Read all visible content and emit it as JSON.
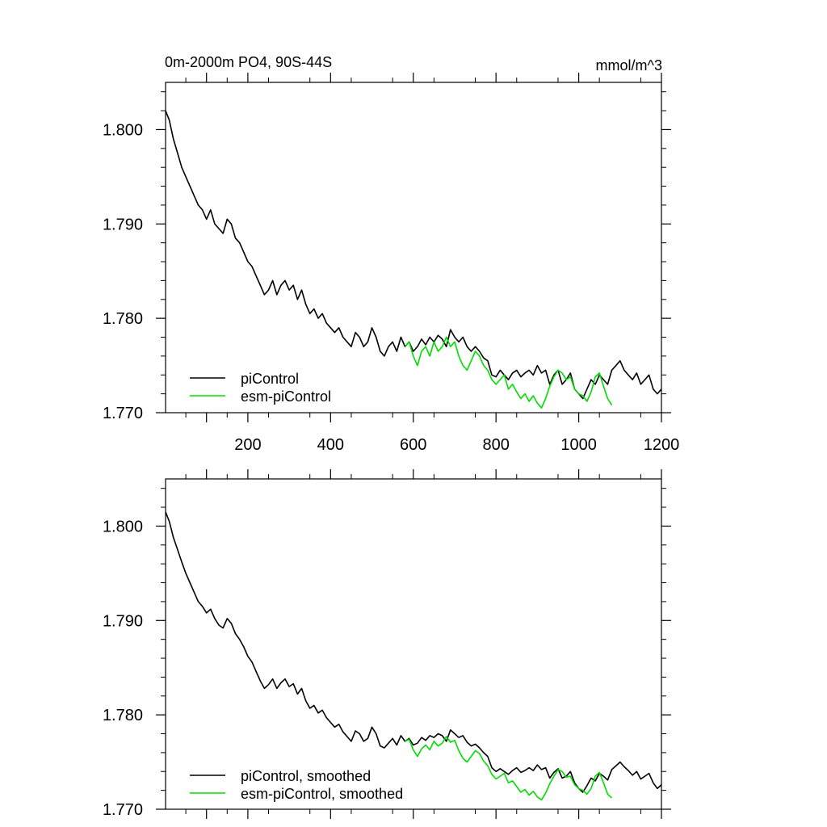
{
  "chart_data": [
    {
      "type": "line",
      "title": "0m-2000m PO4, 90S-44S",
      "units": "mmol/m^3",
      "x_range": [
        1,
        1200
      ],
      "ylim": [
        1.77,
        1.805
      ],
      "x_ticks": [
        200,
        400,
        600,
        800,
        1000,
        1200
      ],
      "y_ticks": [
        "1.770",
        "1.780",
        "1.790",
        "1.800"
      ],
      "grid": false,
      "legend_position": "bottom-left",
      "series": [
        {
          "name": "piControl",
          "color": "#000000",
          "x": [
            1,
            10,
            20,
            30,
            40,
            50,
            60,
            70,
            80,
            90,
            100,
            110,
            120,
            130,
            140,
            150,
            160,
            170,
            180,
            190,
            200,
            210,
            220,
            230,
            240,
            250,
            260,
            270,
            280,
            290,
            300,
            310,
            320,
            330,
            340,
            350,
            360,
            370,
            380,
            390,
            400,
            410,
            420,
            430,
            440,
            450,
            460,
            470,
            480,
            490,
            500,
            510,
            520,
            530,
            540,
            550,
            560,
            570,
            580,
            590,
            600,
            610,
            620,
            630,
            640,
            650,
            660,
            670,
            680,
            690,
            700,
            710,
            720,
            730,
            740,
            750,
            760,
            770,
            780,
            790,
            800,
            810,
            820,
            830,
            840,
            850,
            860,
            870,
            880,
            890,
            900,
            910,
            920,
            930,
            940,
            950,
            960,
            970,
            980,
            990,
            1000,
            1010,
            1020,
            1030,
            1040,
            1050,
            1060,
            1070,
            1080,
            1090,
            1100,
            1110,
            1120,
            1130,
            1140,
            1150,
            1160,
            1170,
            1180,
            1190,
            1200
          ],
          "y": [
            1.802,
            1.801,
            1.799,
            1.7975,
            1.796,
            1.795,
            1.794,
            1.793,
            1.792,
            1.7915,
            1.7905,
            1.7915,
            1.79,
            1.7895,
            1.789,
            1.7905,
            1.79,
            1.7885,
            1.788,
            1.787,
            1.786,
            1.7855,
            1.7845,
            1.7835,
            1.7825,
            1.783,
            1.784,
            1.7825,
            1.7835,
            1.784,
            1.783,
            1.7835,
            1.782,
            1.783,
            1.7815,
            1.7805,
            1.781,
            1.78,
            1.7805,
            1.7795,
            1.779,
            1.7785,
            1.779,
            1.778,
            1.7775,
            1.777,
            1.7785,
            1.778,
            1.777,
            1.7775,
            1.779,
            1.778,
            1.7765,
            1.776,
            1.777,
            1.7775,
            1.7765,
            1.778,
            1.777,
            1.7775,
            1.7765,
            1.777,
            1.7778,
            1.7772,
            1.778,
            1.7775,
            1.7782,
            1.7778,
            1.777,
            1.7788,
            1.778,
            1.7775,
            1.778,
            1.777,
            1.7765,
            1.777,
            1.7765,
            1.7758,
            1.7755,
            1.774,
            1.7738,
            1.7745,
            1.774,
            1.7735,
            1.7742,
            1.7745,
            1.7738,
            1.7742,
            1.7745,
            1.774,
            1.775,
            1.7742,
            1.7745,
            1.773,
            1.774,
            1.7745,
            1.773,
            1.7735,
            1.7742,
            1.7725,
            1.772,
            1.7715,
            1.7725,
            1.7735,
            1.773,
            1.774,
            1.7735,
            1.773,
            1.7745,
            1.775,
            1.7755,
            1.7745,
            1.774,
            1.7735,
            1.7742,
            1.773,
            1.7735,
            1.774,
            1.7725,
            1.772,
            1.7725
          ]
        },
        {
          "name": "esm-piControl",
          "color": "#00dd00",
          "x": [
            580,
            590,
            600,
            610,
            620,
            630,
            640,
            650,
            660,
            670,
            680,
            690,
            700,
            710,
            720,
            730,
            740,
            750,
            760,
            770,
            780,
            790,
            800,
            810,
            820,
            830,
            840,
            850,
            860,
            870,
            880,
            890,
            900,
            910,
            920,
            930,
            940,
            950,
            960,
            970,
            980,
            990,
            1000,
            1010,
            1020,
            1030,
            1040,
            1050,
            1060,
            1070,
            1080
          ],
          "y": [
            1.777,
            1.7775,
            1.776,
            1.775,
            1.7765,
            1.777,
            1.776,
            1.7775,
            1.7765,
            1.777,
            1.778,
            1.777,
            1.7775,
            1.776,
            1.775,
            1.7745,
            1.7755,
            1.7765,
            1.776,
            1.775,
            1.7745,
            1.7735,
            1.773,
            1.7735,
            1.774,
            1.7725,
            1.773,
            1.7722,
            1.7715,
            1.772,
            1.7712,
            1.7718,
            1.771,
            1.7705,
            1.7715,
            1.7728,
            1.7738,
            1.7745,
            1.7742,
            1.7735,
            1.7738,
            1.7725,
            1.772,
            1.7718,
            1.7712,
            1.7722,
            1.7738,
            1.7742,
            1.7728,
            1.7715,
            1.7708
          ]
        }
      ]
    },
    {
      "type": "line",
      "x_range": [
        1,
        1200
      ],
      "ylim": [
        1.77,
        1.805
      ],
      "x_ticks": [
        200,
        400,
        600,
        800,
        1000,
        1200
      ],
      "y_ticks": [
        "1.770",
        "1.780",
        "1.790",
        "1.800"
      ],
      "grid": false,
      "legend_position": "bottom-left",
      "series": [
        {
          "name": "piControl, smoothed",
          "color": "#000000",
          "x": [
            1,
            10,
            20,
            30,
            40,
            50,
            60,
            70,
            80,
            90,
            100,
            110,
            120,
            130,
            140,
            150,
            160,
            170,
            180,
            190,
            200,
            210,
            220,
            230,
            240,
            250,
            260,
            270,
            280,
            290,
            300,
            310,
            320,
            330,
            340,
            350,
            360,
            370,
            380,
            390,
            400,
            410,
            420,
            430,
            440,
            450,
            460,
            470,
            480,
            490,
            500,
            510,
            520,
            530,
            540,
            550,
            560,
            570,
            580,
            590,
            600,
            610,
            620,
            630,
            640,
            650,
            660,
            670,
            680,
            690,
            700,
            710,
            720,
            730,
            740,
            750,
            760,
            770,
            780,
            790,
            800,
            810,
            820,
            830,
            840,
            850,
            860,
            870,
            880,
            890,
            900,
            910,
            920,
            930,
            940,
            950,
            960,
            970,
            980,
            990,
            1000,
            1010,
            1020,
            1030,
            1040,
            1050,
            1060,
            1070,
            1080,
            1090,
            1100,
            1110,
            1120,
            1130,
            1140,
            1150,
            1160,
            1170,
            1180,
            1190,
            1200
          ],
          "y": [
            1.8015,
            1.8005,
            1.7988,
            1.7975,
            1.7962,
            1.795,
            1.794,
            1.793,
            1.792,
            1.7915,
            1.7908,
            1.7912,
            1.7902,
            1.7895,
            1.7892,
            1.7902,
            1.7897,
            1.7886,
            1.788,
            1.7872,
            1.7862,
            1.7856,
            1.7846,
            1.7836,
            1.7828,
            1.7832,
            1.7838,
            1.7828,
            1.7834,
            1.7838,
            1.783,
            1.7833,
            1.7822,
            1.7828,
            1.7815,
            1.7807,
            1.781,
            1.7802,
            1.7805,
            1.7797,
            1.7792,
            1.7787,
            1.779,
            1.7782,
            1.7777,
            1.7772,
            1.7783,
            1.778,
            1.7772,
            1.7775,
            1.7787,
            1.778,
            1.7767,
            1.7765,
            1.777,
            1.7775,
            1.7768,
            1.7778,
            1.7772,
            1.7775,
            1.7768,
            1.777,
            1.7776,
            1.7773,
            1.7778,
            1.7776,
            1.778,
            1.7778,
            1.7772,
            1.7784,
            1.778,
            1.7776,
            1.7778,
            1.7771,
            1.7767,
            1.7769,
            1.7765,
            1.776,
            1.7756,
            1.7744,
            1.774,
            1.7743,
            1.774,
            1.7737,
            1.7741,
            1.7744,
            1.7739,
            1.7741,
            1.7744,
            1.7741,
            1.7747,
            1.7742,
            1.7744,
            1.7733,
            1.7739,
            1.7743,
            1.7733,
            1.7735,
            1.774,
            1.7728,
            1.7722,
            1.7718,
            1.7725,
            1.7733,
            1.773,
            1.7738,
            1.7735,
            1.7731,
            1.7742,
            1.7746,
            1.775,
            1.7745,
            1.7741,
            1.7736,
            1.774,
            1.7732,
            1.7735,
            1.7738,
            1.7728,
            1.7722,
            1.7726
          ]
        },
        {
          "name": "esm-piControl, smoothed",
          "color": "#00dd00",
          "x": [
            580,
            590,
            600,
            610,
            620,
            630,
            640,
            650,
            660,
            670,
            680,
            690,
            700,
            710,
            720,
            730,
            740,
            750,
            760,
            770,
            780,
            790,
            800,
            810,
            820,
            830,
            840,
            850,
            860,
            870,
            880,
            890,
            900,
            910,
            920,
            930,
            940,
            950,
            960,
            970,
            980,
            990,
            1000,
            1010,
            1020,
            1030,
            1040,
            1050,
            1060,
            1070,
            1080
          ],
          "y": [
            1.7772,
            1.7774,
            1.7763,
            1.7756,
            1.7764,
            1.7768,
            1.7763,
            1.7772,
            1.7767,
            1.777,
            1.7777,
            1.7771,
            1.7773,
            1.7762,
            1.7754,
            1.775,
            1.7756,
            1.7762,
            1.7759,
            1.7751,
            1.7746,
            1.7737,
            1.7732,
            1.7735,
            1.7738,
            1.7728,
            1.773,
            1.7724,
            1.7718,
            1.7721,
            1.7715,
            1.7719,
            1.7713,
            1.771,
            1.7717,
            1.7727,
            1.7735,
            1.7742,
            1.774,
            1.7734,
            1.7735,
            1.7726,
            1.7722,
            1.772,
            1.7716,
            1.7722,
            1.7735,
            1.7739,
            1.7728,
            1.7716,
            1.7712
          ]
        }
      ]
    }
  ]
}
